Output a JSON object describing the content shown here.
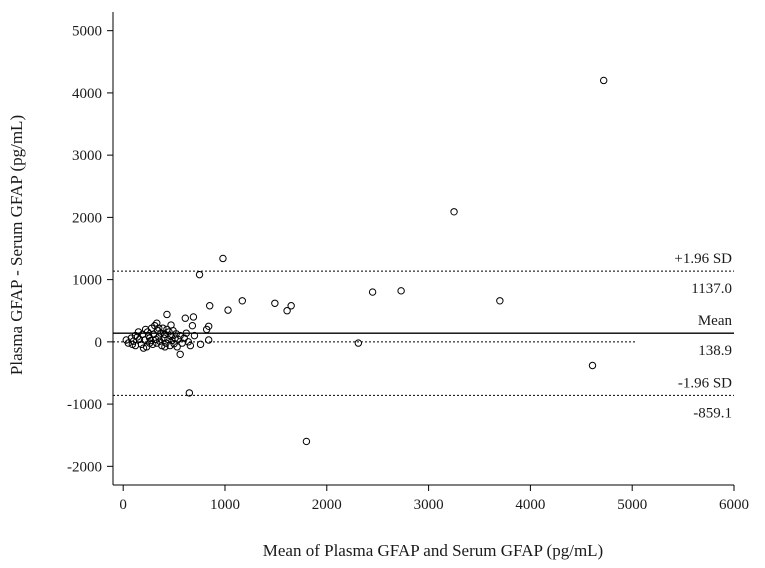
{
  "chart_data": {
    "type": "scatter",
    "title": "",
    "xlabel": "Mean of Plasma GFAP and Serum GFAP (pg/mL)",
    "ylabel": "Plasma GFAP - Serum GFAP (pg/mL)",
    "xlim": [
      -100,
      6000
    ],
    "ylim": [
      -2300,
      5300
    ],
    "x_ticks": [
      0,
      1000,
      2000,
      3000,
      4000,
      5000,
      6000
    ],
    "y_ticks": [
      -2000,
      -1000,
      0,
      1000,
      2000,
      3000,
      4000,
      5000
    ],
    "x_tick_labels": [
      "0",
      "1000",
      "2000",
      "3000",
      "4000",
      "5000",
      "6000"
    ],
    "y_tick_labels": [
      "-2000",
      "-1000",
      "0",
      "1000",
      "2000",
      "3000",
      "4000",
      "5000"
    ],
    "grid": false,
    "reference_lines": [
      {
        "name": "+1.96 SD",
        "value": 1137.0,
        "value_label": "1137.0",
        "style": "dotted"
      },
      {
        "name": "Mean",
        "value": 138.9,
        "value_label": "138.9",
        "style": "solid"
      },
      {
        "name": "-1.96 SD",
        "value": -859.1,
        "value_label": "-859.1",
        "style": "dotted"
      }
    ],
    "zero_line": {
      "value": 0,
      "x_end": 5030,
      "style": "dotted"
    },
    "series": [
      {
        "marker": "open-circle",
        "color": "#000000",
        "points": [
          [
            4720,
            4200
          ],
          [
            3250,
            2090
          ],
          [
            980,
            1340
          ],
          [
            750,
            1080
          ],
          [
            2730,
            820
          ],
          [
            2450,
            800
          ],
          [
            3700,
            660
          ],
          [
            1170,
            660
          ],
          [
            1490,
            620
          ],
          [
            1650,
            580
          ],
          [
            1610,
            500
          ],
          [
            1030,
            510
          ],
          [
            850,
            580
          ],
          [
            610,
            380
          ],
          [
            690,
            400
          ],
          [
            430,
            440
          ],
          [
            840,
            250
          ],
          [
            820,
            200
          ],
          [
            680,
            260
          ],
          [
            4610,
            -380
          ],
          [
            2310,
            -20
          ],
          [
            650,
            -820
          ],
          [
            1800,
            -1600
          ],
          [
            760,
            -40
          ],
          [
            840,
            30
          ],
          [
            560,
            -200
          ],
          [
            30,
            30
          ],
          [
            50,
            -20
          ],
          [
            80,
            60
          ],
          [
            100,
            10
          ],
          [
            120,
            -60
          ],
          [
            140,
            80
          ],
          [
            160,
            40
          ],
          [
            180,
            -40
          ],
          [
            190,
            120
          ],
          [
            210,
            30
          ],
          [
            230,
            -80
          ],
          [
            240,
            160
          ],
          [
            260,
            60
          ],
          [
            270,
            20
          ],
          [
            280,
            220
          ],
          [
            290,
            -40
          ],
          [
            300,
            120
          ],
          [
            310,
            260
          ],
          [
            320,
            40
          ],
          [
            330,
            -20
          ],
          [
            340,
            180
          ],
          [
            350,
            80
          ],
          [
            360,
            10
          ],
          [
            370,
            140
          ],
          [
            380,
            -60
          ],
          [
            390,
            220
          ],
          [
            400,
            60
          ],
          [
            410,
            120
          ],
          [
            420,
            -20
          ],
          [
            430,
            200
          ],
          [
            440,
            40
          ],
          [
            450,
            160
          ],
          [
            460,
            -60
          ],
          [
            470,
            90
          ],
          [
            480,
            20
          ],
          [
            490,
            180
          ],
          [
            500,
            -30
          ],
          [
            510,
            60
          ],
          [
            520,
            130
          ],
          [
            530,
            -80
          ],
          [
            540,
            40
          ],
          [
            560,
            100
          ],
          [
            580,
            -20
          ],
          [
            600,
            60
          ],
          [
            620,
            140
          ],
          [
            640,
            0
          ],
          [
            660,
            -60
          ],
          [
            700,
            100
          ],
          [
            150,
            160
          ],
          [
            200,
            -100
          ],
          [
            250,
            100
          ],
          [
            330,
            300
          ],
          [
            260,
            -20
          ],
          [
            410,
            -80
          ],
          [
            470,
            270
          ],
          [
            120,
            100
          ],
          [
            90,
            -40
          ],
          [
            350,
            220
          ],
          [
            220,
            200
          ]
        ]
      }
    ]
  }
}
